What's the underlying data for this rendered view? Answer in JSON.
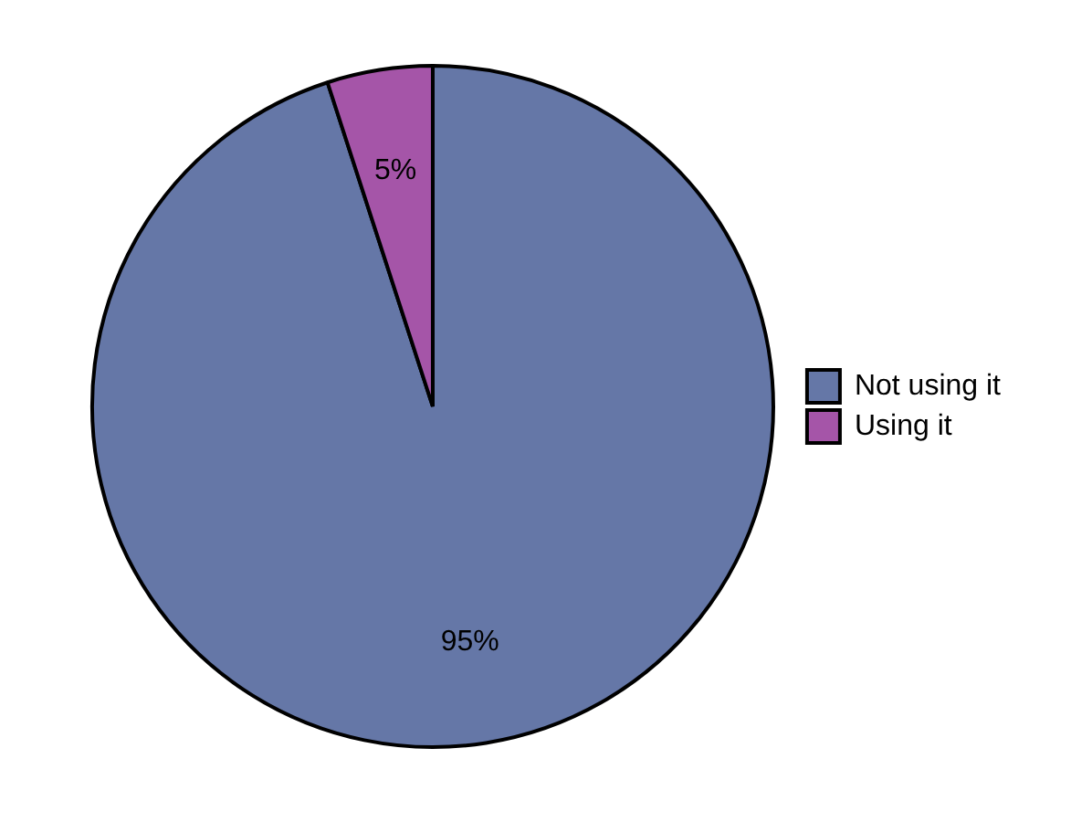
{
  "chart_data": {
    "type": "pie",
    "categories": [
      "Not using it",
      "Using it"
    ],
    "values": [
      95,
      5
    ],
    "colors": [
      "#6577a7",
      "#a555a8"
    ],
    "value_labels": [
      "95%",
      "5%"
    ],
    "legend": "right"
  }
}
